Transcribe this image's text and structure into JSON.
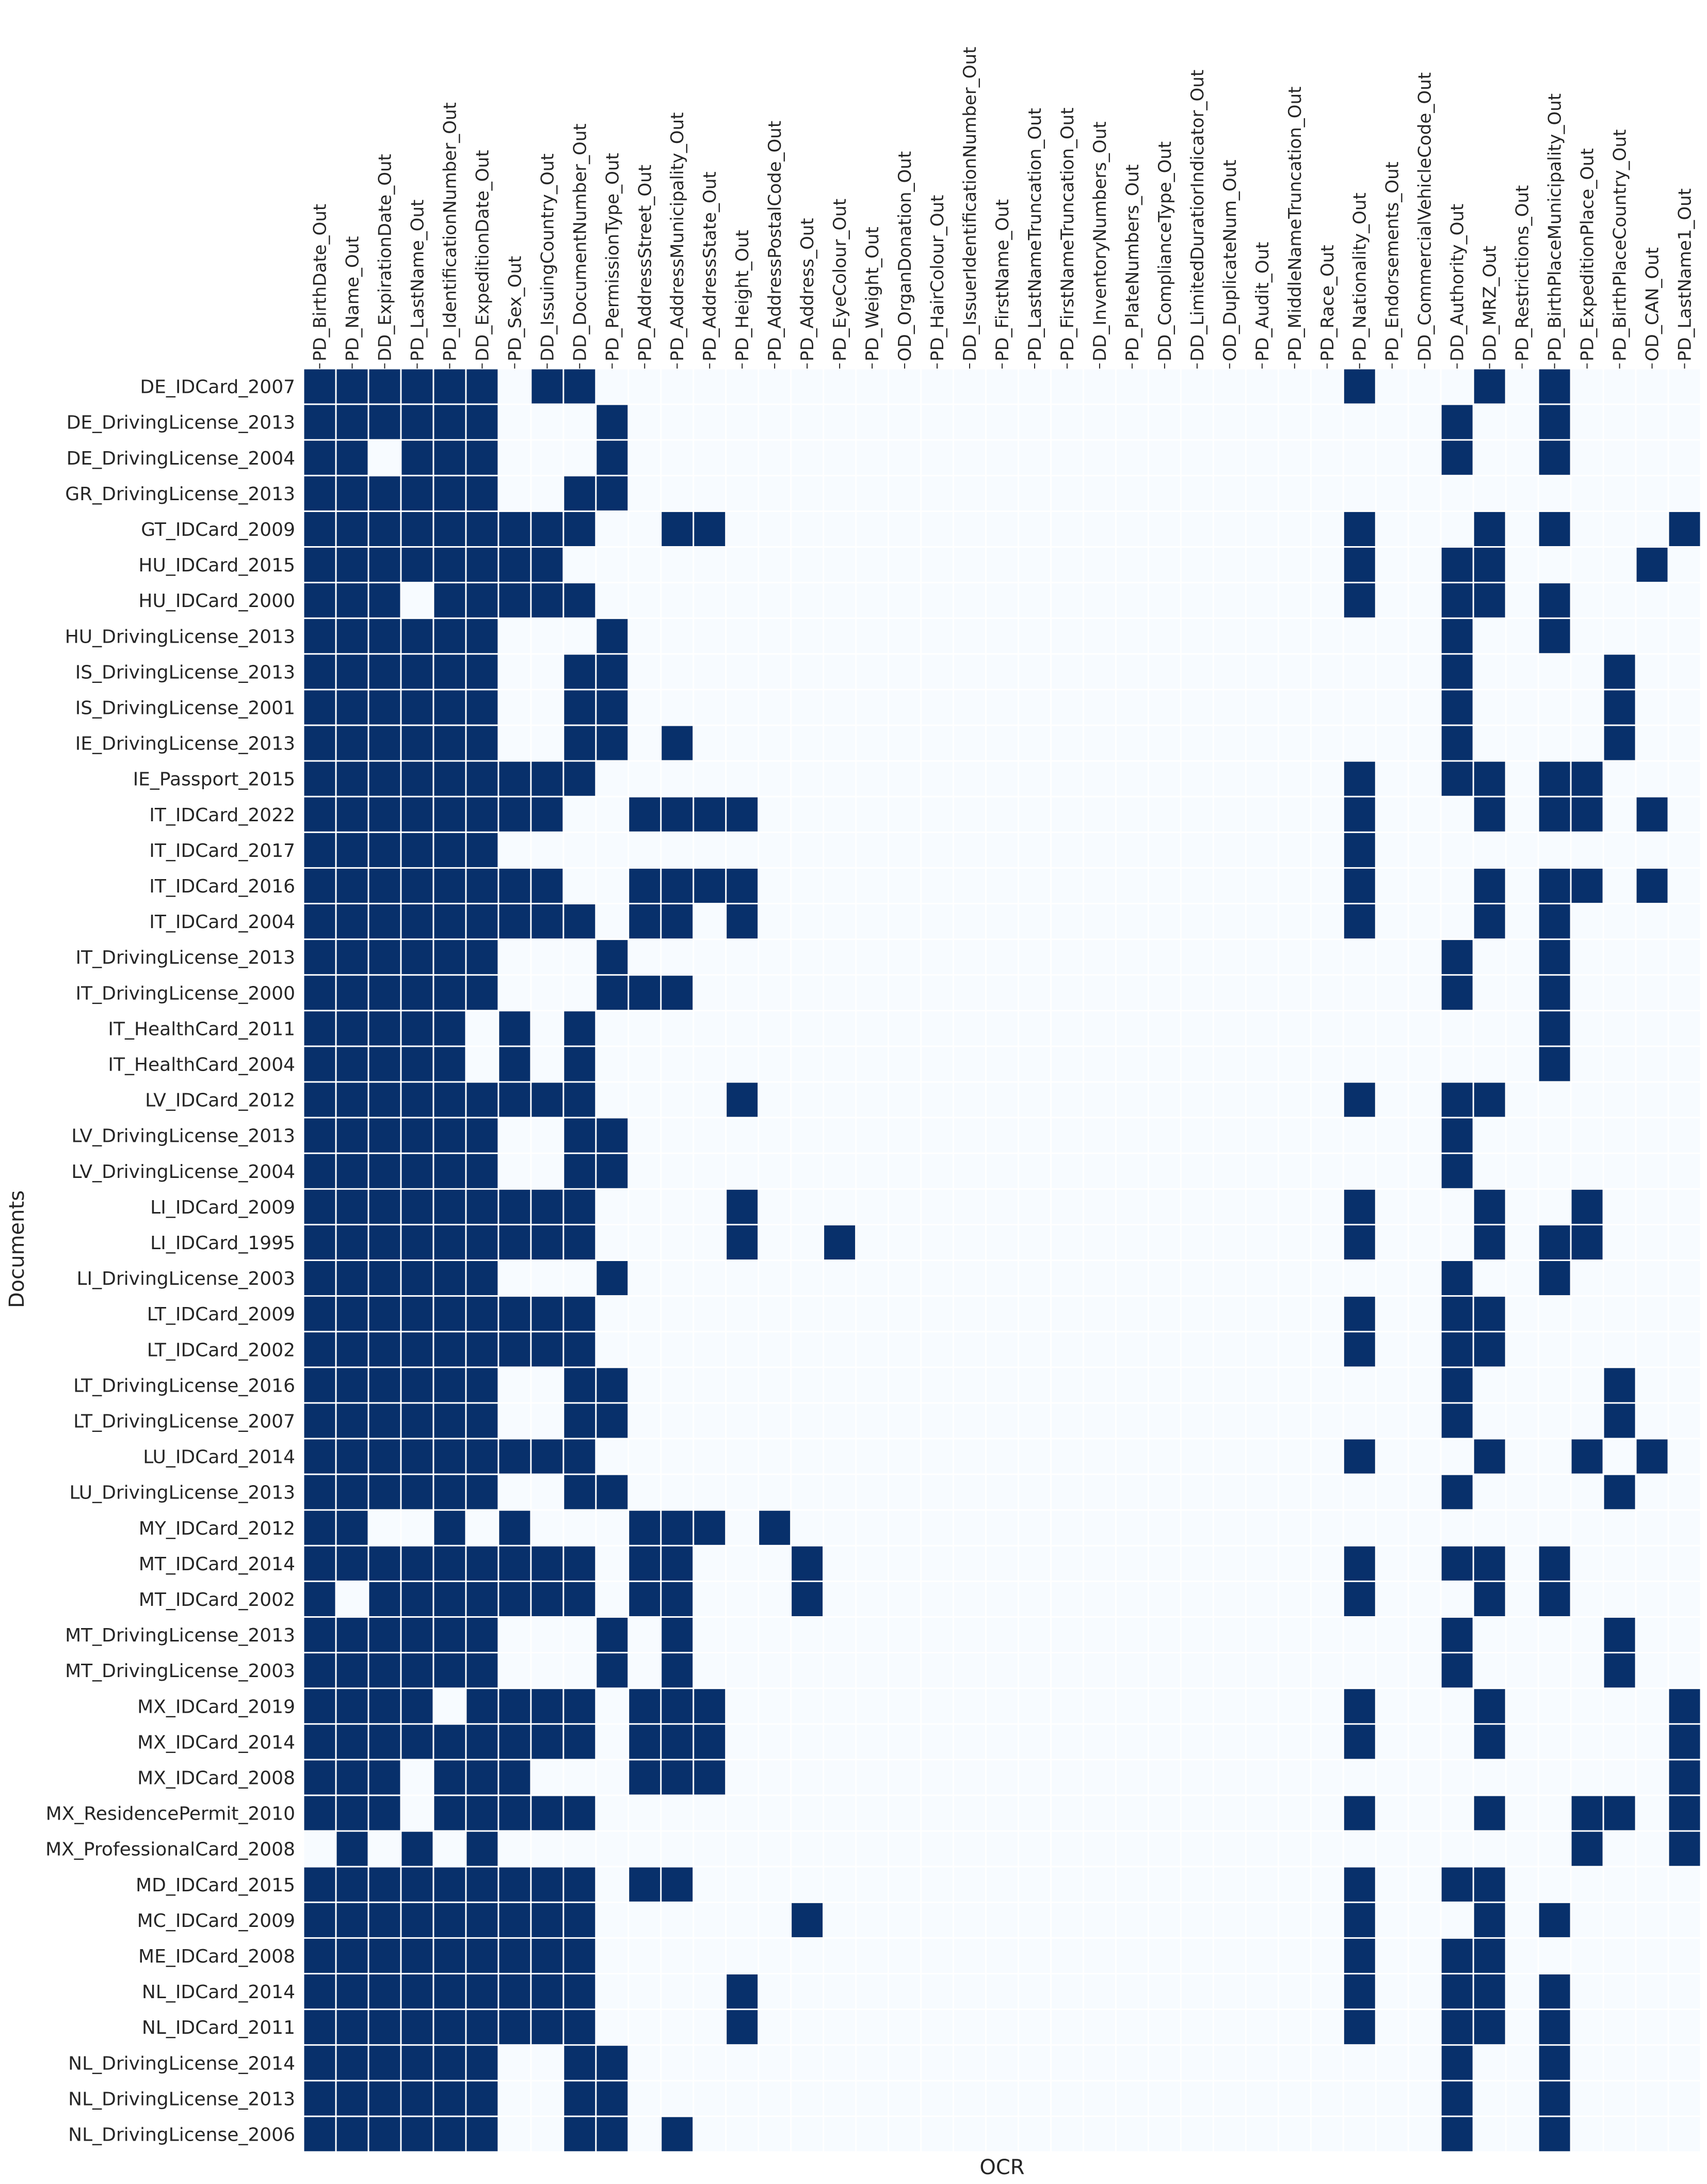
{
  "chart_data": {
    "type": "heatmap",
    "xlabel": "OCR",
    "ylabel": "Documents",
    "colors": {
      "filled": "#08306b",
      "empty": "#f7fbff",
      "gap": "#ffffff"
    },
    "columns": [
      "PD_BirthDate_Out",
      "PD_Name_Out",
      "DD_ExpirationDate_Out",
      "PD_LastName_Out",
      "PD_IdentificationNumber_Out",
      "DD_ExpeditionDate_Out",
      "PD_Sex_Out",
      "DD_IssuingCountry_Out",
      "DD_DocumentNumber_Out",
      "PD_PermissionType_Out",
      "PD_AddressStreet_Out",
      "PD_AddressMunicipality_Out",
      "PD_AddressState_Out",
      "PD_Height_Out",
      "PD_AddressPostalCode_Out",
      "PD_Address_Out",
      "PD_EyeColour_Out",
      "PD_Weight_Out",
      "OD_OrganDonation_Out",
      "PD_HairColour_Out",
      "DD_IssuerIdentificationNumber_Out",
      "PD_FirstName_Out",
      "PD_LastNameTruncation_Out",
      "PD_FirstNameTruncation_Out",
      "DD_InventoryNumbers_Out",
      "PD_PlateNumbers_Out",
      "DD_ComplianceType_Out",
      "DD_LimitedDuratiorIndicator_Out",
      "OD_DuplicateNum_Out",
      "PD_Audit_Out",
      "PD_MiddleNameTruncation_Out",
      "PD_Race_Out",
      "PD_Nationality_Out",
      "PD_Endorsements_Out",
      "DD_CommercialVehicleCode_Out",
      "DD_Authority_Out",
      "DD_MRZ_Out",
      "PD_Restrictions_Out",
      "PD_BirthPlaceMunicipality_Out",
      "PD_ExpeditionPlace_Out",
      "PD_BirthPlaceCountry_Out",
      "OD_CAN_Out",
      "PD_LastName1_Out"
    ],
    "rows": [
      {
        "name": "DE_IDCard_2007",
        "filled": [
          0,
          1,
          2,
          3,
          4,
          5,
          7,
          8,
          32,
          36,
          38
        ]
      },
      {
        "name": "DE_DrivingLicense_2013",
        "filled": [
          0,
          1,
          2,
          3,
          4,
          5,
          9,
          35,
          38
        ]
      },
      {
        "name": "DE_DrivingLicense_2004",
        "filled": [
          0,
          1,
          3,
          4,
          5,
          9,
          35,
          38
        ]
      },
      {
        "name": "GR_DrivingLicense_2013",
        "filled": [
          0,
          1,
          2,
          3,
          4,
          5,
          8,
          9
        ]
      },
      {
        "name": "GT_IDCard_2009",
        "filled": [
          0,
          1,
          2,
          3,
          4,
          5,
          6,
          7,
          8,
          11,
          12,
          32,
          36,
          38,
          42
        ]
      },
      {
        "name": "HU_IDCard_2015",
        "filled": [
          0,
          1,
          2,
          3,
          4,
          5,
          6,
          7,
          32,
          35,
          36,
          41
        ]
      },
      {
        "name": "HU_IDCard_2000",
        "filled": [
          0,
          1,
          2,
          4,
          5,
          6,
          7,
          8,
          32,
          35,
          36,
          38
        ]
      },
      {
        "name": "HU_DrivingLicense_2013",
        "filled": [
          0,
          1,
          2,
          3,
          4,
          5,
          9,
          35,
          38
        ]
      },
      {
        "name": "IS_DrivingLicense_2013",
        "filled": [
          0,
          1,
          2,
          3,
          4,
          5,
          8,
          9,
          35,
          40
        ]
      },
      {
        "name": "IS_DrivingLicense_2001",
        "filled": [
          0,
          1,
          2,
          3,
          4,
          5,
          8,
          9,
          35,
          40
        ]
      },
      {
        "name": "IE_DrivingLicense_2013",
        "filled": [
          0,
          1,
          2,
          3,
          4,
          5,
          8,
          9,
          11,
          35,
          40
        ]
      },
      {
        "name": "IE_Passport_2015",
        "filled": [
          0,
          1,
          2,
          3,
          4,
          5,
          6,
          7,
          8,
          32,
          35,
          36,
          38,
          39
        ]
      },
      {
        "name": "IT_IDCard_2022",
        "filled": [
          0,
          1,
          2,
          3,
          4,
          5,
          6,
          7,
          10,
          11,
          12,
          13,
          32,
          36,
          38,
          39,
          41
        ]
      },
      {
        "name": "IT_IDCard_2017",
        "filled": [
          0,
          1,
          2,
          3,
          4,
          5,
          32
        ]
      },
      {
        "name": "IT_IDCard_2016",
        "filled": [
          0,
          1,
          2,
          3,
          4,
          5,
          6,
          7,
          10,
          11,
          12,
          13,
          32,
          36,
          38,
          39,
          41
        ]
      },
      {
        "name": "IT_IDCard_2004",
        "filled": [
          0,
          1,
          2,
          3,
          4,
          5,
          6,
          7,
          8,
          10,
          11,
          13,
          32,
          36,
          38
        ]
      },
      {
        "name": "IT_DrivingLicense_2013",
        "filled": [
          0,
          1,
          2,
          3,
          4,
          5,
          9,
          35,
          38
        ]
      },
      {
        "name": "IT_DrivingLicense_2000",
        "filled": [
          0,
          1,
          2,
          3,
          4,
          5,
          9,
          10,
          11,
          35,
          38
        ]
      },
      {
        "name": "IT_HealthCard_2011",
        "filled": [
          0,
          1,
          2,
          3,
          4,
          6,
          8,
          38
        ]
      },
      {
        "name": "IT_HealthCard_2004",
        "filled": [
          0,
          1,
          2,
          3,
          4,
          6,
          8,
          38
        ]
      },
      {
        "name": "LV_IDCard_2012",
        "filled": [
          0,
          1,
          2,
          3,
          4,
          5,
          6,
          7,
          8,
          13,
          32,
          35,
          36
        ]
      },
      {
        "name": "LV_DrivingLicense_2013",
        "filled": [
          0,
          1,
          2,
          3,
          4,
          5,
          8,
          9,
          35
        ]
      },
      {
        "name": "LV_DrivingLicense_2004",
        "filled": [
          0,
          1,
          2,
          3,
          4,
          5,
          8,
          9,
          35
        ]
      },
      {
        "name": "LI_IDCard_2009",
        "filled": [
          0,
          1,
          2,
          3,
          4,
          5,
          6,
          7,
          8,
          13,
          32,
          36,
          39
        ]
      },
      {
        "name": "LI_IDCard_1995",
        "filled": [
          0,
          1,
          2,
          3,
          4,
          5,
          6,
          7,
          8,
          13,
          16,
          32,
          36,
          38,
          39
        ]
      },
      {
        "name": "LI_DrivingLicense_2003",
        "filled": [
          0,
          1,
          2,
          3,
          4,
          5,
          9,
          35,
          38
        ]
      },
      {
        "name": "LT_IDCard_2009",
        "filled": [
          0,
          1,
          2,
          3,
          4,
          5,
          6,
          7,
          8,
          32,
          35,
          36
        ]
      },
      {
        "name": "LT_IDCard_2002",
        "filled": [
          0,
          1,
          2,
          3,
          4,
          5,
          6,
          7,
          8,
          32,
          35,
          36
        ]
      },
      {
        "name": "LT_DrivingLicense_2016",
        "filled": [
          0,
          1,
          2,
          3,
          4,
          5,
          8,
          9,
          35,
          40
        ]
      },
      {
        "name": "LT_DrivingLicense_2007",
        "filled": [
          0,
          1,
          2,
          3,
          4,
          5,
          8,
          9,
          35,
          40
        ]
      },
      {
        "name": "LU_IDCard_2014",
        "filled": [
          0,
          1,
          2,
          3,
          4,
          5,
          6,
          7,
          8,
          32,
          36,
          39,
          41
        ]
      },
      {
        "name": "LU_DrivingLicense_2013",
        "filled": [
          0,
          1,
          2,
          3,
          4,
          5,
          8,
          9,
          35,
          40
        ]
      },
      {
        "name": "MY_IDCard_2012",
        "filled": [
          0,
          1,
          4,
          6,
          10,
          11,
          12,
          14
        ]
      },
      {
        "name": "MT_IDCard_2014",
        "filled": [
          0,
          1,
          2,
          3,
          4,
          5,
          6,
          7,
          8,
          10,
          11,
          15,
          32,
          35,
          36,
          38
        ]
      },
      {
        "name": "MT_IDCard_2002",
        "filled": [
          0,
          2,
          3,
          4,
          5,
          6,
          7,
          8,
          10,
          11,
          15,
          32,
          36,
          38
        ]
      },
      {
        "name": "MT_DrivingLicense_2013",
        "filled": [
          0,
          1,
          2,
          3,
          4,
          5,
          9,
          11,
          35,
          40
        ]
      },
      {
        "name": "MT_DrivingLicense_2003",
        "filled": [
          0,
          1,
          2,
          3,
          4,
          5,
          9,
          11,
          35,
          40
        ]
      },
      {
        "name": "MX_IDCard_2019",
        "filled": [
          0,
          1,
          2,
          3,
          5,
          6,
          7,
          8,
          10,
          11,
          12,
          32,
          36,
          42
        ]
      },
      {
        "name": "MX_IDCard_2014",
        "filled": [
          0,
          1,
          2,
          3,
          4,
          5,
          6,
          7,
          8,
          10,
          11,
          12,
          32,
          36,
          42
        ]
      },
      {
        "name": "MX_IDCard_2008",
        "filled": [
          0,
          1,
          2,
          4,
          5,
          6,
          10,
          11,
          12,
          42
        ]
      },
      {
        "name": "MX_ResidencePermit_2010",
        "filled": [
          0,
          1,
          2,
          4,
          5,
          6,
          7,
          8,
          32,
          36,
          39,
          40,
          42
        ]
      },
      {
        "name": "MX_ProfessionalCard_2008",
        "filled": [
          1,
          3,
          5,
          39,
          42
        ]
      },
      {
        "name": "MD_IDCard_2015",
        "filled": [
          0,
          1,
          2,
          3,
          4,
          5,
          6,
          7,
          8,
          10,
          11,
          32,
          35,
          36
        ]
      },
      {
        "name": "MC_IDCard_2009",
        "filled": [
          0,
          1,
          2,
          3,
          4,
          5,
          6,
          7,
          8,
          15,
          32,
          36,
          38
        ]
      },
      {
        "name": "ME_IDCard_2008",
        "filled": [
          0,
          1,
          2,
          3,
          4,
          5,
          6,
          7,
          8,
          32,
          35,
          36
        ]
      },
      {
        "name": "NL_IDCard_2014",
        "filled": [
          0,
          1,
          2,
          3,
          4,
          5,
          6,
          7,
          8,
          13,
          32,
          35,
          36,
          38
        ]
      },
      {
        "name": "NL_IDCard_2011",
        "filled": [
          0,
          1,
          2,
          3,
          4,
          5,
          6,
          7,
          8,
          13,
          32,
          35,
          36,
          38
        ]
      },
      {
        "name": "NL_DrivingLicense_2014",
        "filled": [
          0,
          1,
          2,
          3,
          4,
          5,
          8,
          9,
          35,
          38
        ]
      },
      {
        "name": "NL_DrivingLicense_2013",
        "filled": [
          0,
          1,
          2,
          3,
          4,
          5,
          8,
          9,
          35,
          38
        ]
      },
      {
        "name": "NL_DrivingLicense_2006",
        "filled": [
          0,
          1,
          2,
          3,
          4,
          5,
          8,
          9,
          11,
          35,
          38
        ]
      }
    ]
  }
}
